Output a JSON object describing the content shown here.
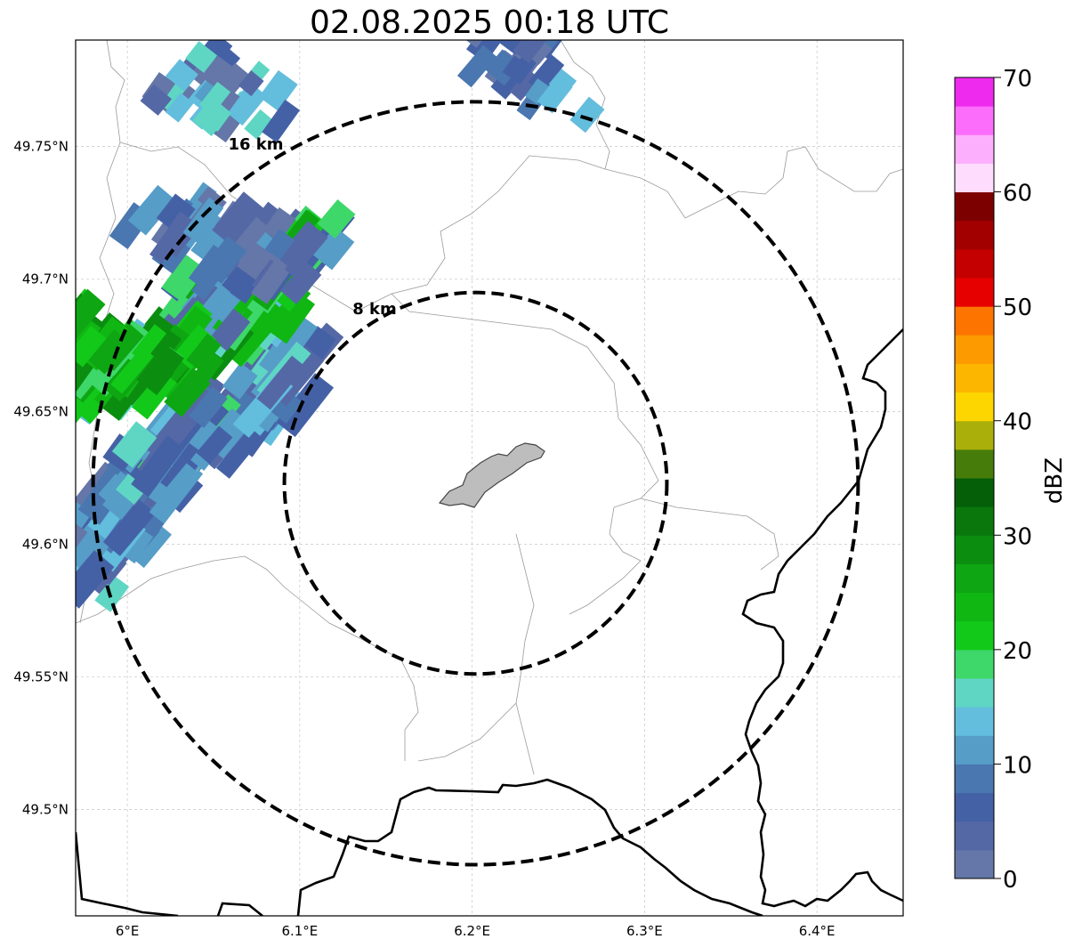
{
  "title": "02.08.2025 00:18 UTC",
  "map": {
    "lon_range": [
      5.97,
      6.45
    ],
    "lat_range": [
      49.46,
      49.79
    ],
    "lon_ticks": [
      {
        "value": 6.0,
        "label": "6°E"
      },
      {
        "value": 6.1,
        "label": "6.1°E"
      },
      {
        "value": 6.2,
        "label": "6.2°E"
      },
      {
        "value": 6.3,
        "label": "6.3°E"
      },
      {
        "value": 6.4,
        "label": "6.4°E"
      }
    ],
    "lat_ticks": [
      {
        "value": 49.75,
        "label": "49.75°N"
      },
      {
        "value": 49.7,
        "label": "49.7°N"
      },
      {
        "value": 49.65,
        "label": "49.65°N"
      },
      {
        "value": 49.6,
        "label": "49.6°N"
      },
      {
        "value": 49.55,
        "label": "49.55°N"
      },
      {
        "value": 49.5,
        "label": "49.5°N"
      }
    ],
    "grid": true,
    "center": {
      "lon": 6.202,
      "lat": 49.623
    },
    "rings": [
      {
        "radius_km": 8,
        "label": "8 km"
      },
      {
        "radius_km": 16,
        "label": "16 km"
      }
    ]
  },
  "colorbar": {
    "label": "dBZ",
    "min": 0,
    "max": 70,
    "step": 2.5,
    "tick_labels": [
      "0",
      "10",
      "20",
      "30",
      "40",
      "50",
      "60",
      "70"
    ],
    "colors": [
      "#6477a8",
      "#5568a6",
      "#4561a6",
      "#4a77b0",
      "#569dc8",
      "#63bddd",
      "#5fd6c4",
      "#3ed76a",
      "#12c919",
      "#10b713",
      "#0ea612",
      "#0b8e10",
      "#0a770c",
      "#055f08",
      "#467c0a",
      "#aaaf0a",
      "#fdd600",
      "#fdb600",
      "#fd9a00",
      "#fd7500",
      "#e60000",
      "#c40000",
      "#a20000",
      "#7d0000",
      "#fddcfd",
      "#fcaffc",
      "#fc6dfc",
      "#ee2aee"
    ]
  }
}
